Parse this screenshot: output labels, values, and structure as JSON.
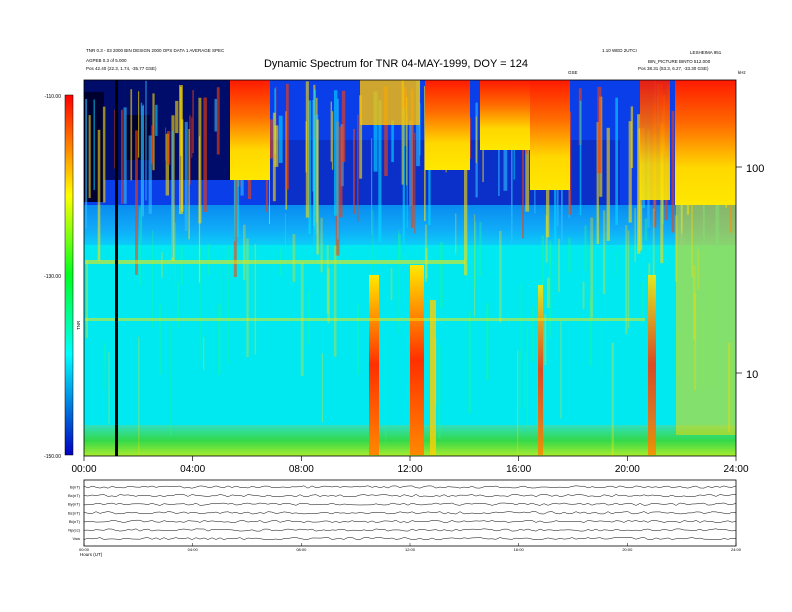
{
  "header": {
    "left_line1": "TNR 0.3 - 03 2000 BIN DESIGN 2000 OPS DATA 1 AVERAGE SPEC",
    "left_line2": "AGPEB 0.3 of 5.000",
    "left_line3": "Pos   42.40 (22.3, 1.74, -35.77 GSE)",
    "right_line1": "1.10 WED 2UTCI",
    "right_line2": "LESHEIMA 951",
    "right_line3": "BIN_PICTURE BINTO 512.000",
    "right_line4": "Pos   38.31 (53.3, 6.27, -33.30 GSE)",
    "center_small": "GSE",
    "khz": "kHz"
  },
  "chart_data": {
    "type": "heatmap",
    "title": "Dynamic Spectrum for TNR 04-MAY-1999, DOY = 124",
    "x_ticks": [
      "00:00",
      "04:00",
      "08:00",
      "12:00",
      "16:00",
      "20:00",
      "24:00"
    ],
    "y_right_ticks": [
      "100",
      "10"
    ],
    "colorbar": {
      "ticks": [
        "-110.00",
        "-130.00",
        "-150.00"
      ],
      "label": "TNR",
      "range": [
        -150,
        -110
      ]
    },
    "bottom_panel": {
      "rows": [
        "B(nT)",
        "Bx(nT)",
        "By(nT)",
        "Bz(nT)",
        "Bt(nT)",
        "Np(cc)",
        "Vsw"
      ],
      "x_ticks": [
        "00:00",
        "04:00",
        "08:00",
        "12:00",
        "16:00",
        "20:00",
        "24:00"
      ],
      "footer": "Hours (UT)"
    }
  },
  "colors": {
    "background": "#00e5f0",
    "band": "#0050ff",
    "dark": "#000080",
    "red": "#ff1a00",
    "yellow": "#ffe000",
    "green": "#3dd64a"
  }
}
